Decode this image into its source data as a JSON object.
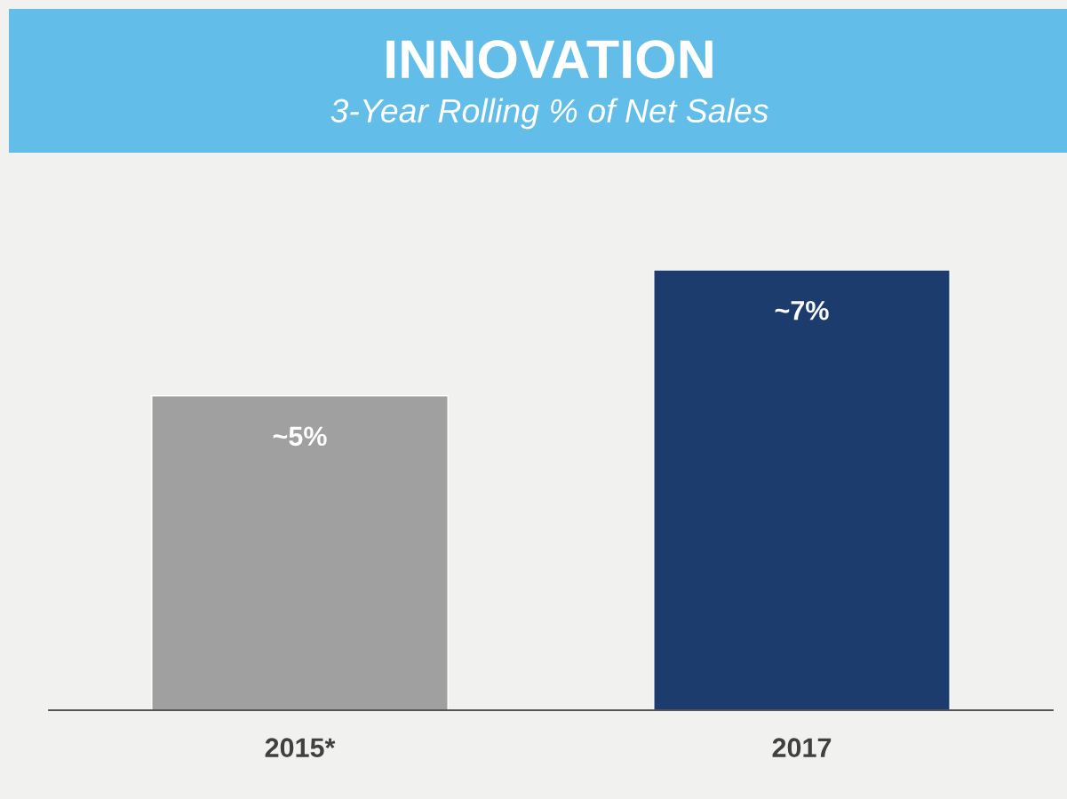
{
  "chart_data": {
    "type": "bar",
    "title": "INNOVATION",
    "subtitle": "3-Year Rolling % of Net Sales",
    "categories": [
      "2015*",
      "2017"
    ],
    "values": [
      5,
      7
    ],
    "colors": [
      "#a0a0a0",
      "#1c3c6e"
    ],
    "value_labels": [
      "~5%",
      "~7%"
    ],
    "grid": false,
    "legend": false
  }
}
